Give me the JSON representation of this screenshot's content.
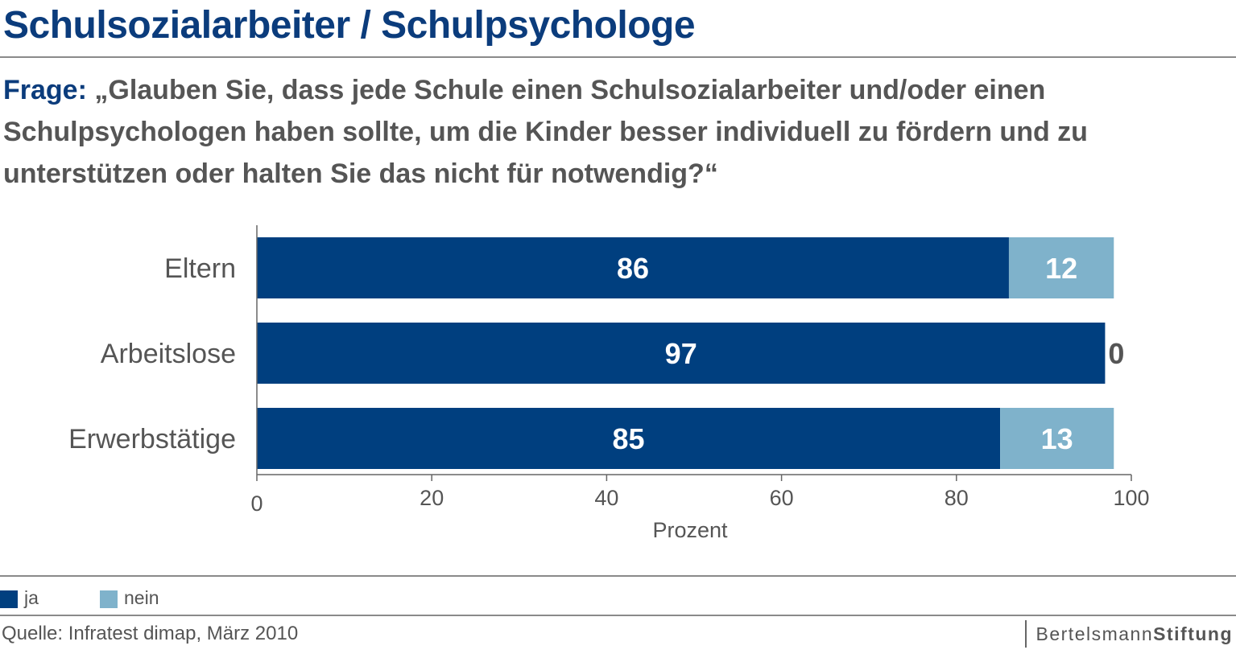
{
  "title": "Schulsozialarbeiter / Schulpsychologe",
  "question_label": "Frage:",
  "question_text": "„Glauben Sie, dass jede Schule einen Schulsozialarbeiter und/oder einen Schulpsychologen haben sollte, um die Kinder besser individuell zu fördern und zu unterstützen oder halten Sie das nicht für notwendig?“",
  "colors": {
    "title": "#0b3c7c",
    "ja": "#003f7f",
    "nein": "#7fb2cb",
    "text": "#555555"
  },
  "legend": [
    {
      "label": "ja",
      "color": "#003f7f"
    },
    {
      "label": "nein",
      "color": "#7fb2cb"
    }
  ],
  "source": "Quelle: Infratest dimap, März 2010",
  "logo": {
    "part1": "Bertelsmann",
    "part2": "Stiftung"
  },
  "chart_data": {
    "type": "bar",
    "orientation": "horizontal",
    "stacked": true,
    "categories": [
      "Eltern",
      "Arbeitslose",
      "Erwerbstätige"
    ],
    "series": [
      {
        "name": "ja",
        "values": [
          86,
          97,
          85
        ]
      },
      {
        "name": "nein",
        "values": [
          12,
          0,
          13
        ]
      }
    ],
    "xlabel": "Prozent",
    "xlim": [
      0,
      100
    ],
    "xticks": [
      0,
      20,
      40,
      60,
      80,
      100
    ],
    "legend_position": "bottom-left",
    "grid": false
  }
}
